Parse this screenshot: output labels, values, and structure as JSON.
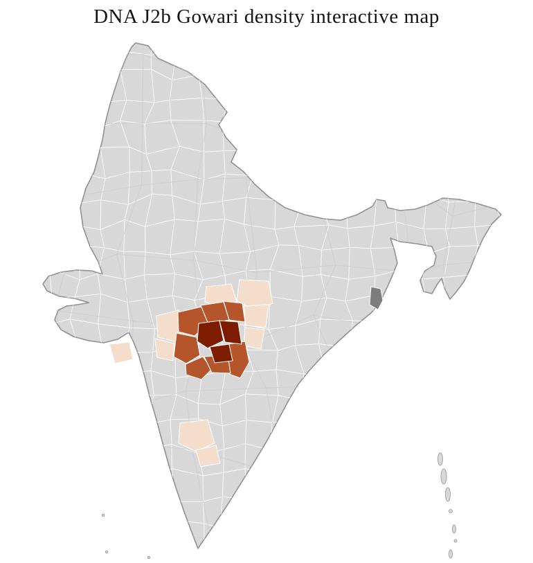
{
  "title": "DNA J2b Gowari density interactive map",
  "map": {
    "colors": {
      "base_fill": "#d8d8d8",
      "district_border": "#ffffff",
      "state_border": "#cccccc",
      "outline": "#909090",
      "dark_district": "#7d7d7d",
      "density_low": "#f5ddcc",
      "density_medium": "#b4552c",
      "density_high": "#7e1c00"
    },
    "density_levels": [
      "low",
      "medium",
      "high"
    ]
  }
}
